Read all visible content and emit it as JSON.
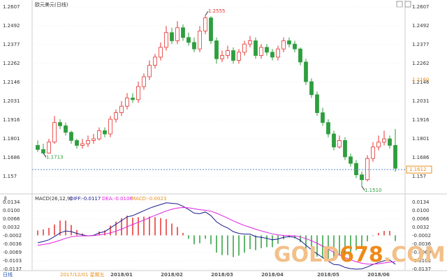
{
  "chart_data": [
    {
      "type": "candlestick",
      "title": "欧元美元(日线)",
      "up_color": "#e8312f",
      "down_color": "#2e9e3e",
      "ylim": [
        1.1476,
        1.2641
      ],
      "yticks": [
        1.157,
        1.1686,
        1.1801,
        1.1916,
        1.2031,
        1.2146,
        1.2262,
        1.2377,
        1.2492,
        1.2607
      ],
      "opens": [
        1.176,
        1.1735,
        1.1713,
        1.178,
        1.19,
        1.188,
        1.184,
        1.179,
        1.176,
        1.177,
        1.179,
        1.18,
        1.185,
        1.183,
        1.192,
        1.196,
        1.2,
        1.205,
        1.204,
        1.212,
        1.218,
        1.225,
        1.23,
        1.236,
        1.245,
        1.24,
        1.248,
        1.242,
        1.239,
        1.235,
        1.246,
        1.254,
        1.24,
        1.229,
        1.231,
        1.234,
        1.228,
        1.233,
        1.238,
        1.24,
        1.231,
        1.236,
        1.233,
        1.23,
        1.235,
        1.24,
        1.238,
        1.235,
        1.227,
        1.215,
        1.207,
        1.196,
        1.19,
        1.183,
        1.175,
        1.179,
        1.169,
        1.165,
        1.158,
        1.155,
        1.168,
        1.175,
        1.178,
        1.18,
        1.176
      ],
      "highs": [
        1.179,
        1.177,
        1.18,
        1.194,
        1.192,
        1.19,
        1.185,
        1.18,
        1.18,
        1.182,
        1.183,
        1.187,
        1.187,
        1.194,
        1.198,
        1.203,
        1.208,
        1.208,
        1.215,
        1.22,
        1.228,
        1.232,
        1.239,
        1.249,
        1.248,
        1.252,
        1.25,
        1.245,
        1.242,
        1.249,
        1.2555,
        1.255,
        1.242,
        1.234,
        1.237,
        1.236,
        1.235,
        1.24,
        1.243,
        1.242,
        1.238,
        1.238,
        1.235,
        1.237,
        1.242,
        1.242,
        1.24,
        1.236,
        1.229,
        1.217,
        1.209,
        1.199,
        1.192,
        1.185,
        1.182,
        1.181,
        1.171,
        1.167,
        1.16,
        1.17,
        1.178,
        1.182,
        1.185,
        1.182,
        1.186
      ],
      "lows": [
        1.172,
        1.1713,
        1.171,
        1.177,
        1.186,
        1.182,
        1.177,
        1.174,
        1.174,
        1.175,
        1.177,
        1.179,
        1.181,
        1.181,
        1.19,
        1.194,
        1.198,
        1.202,
        1.202,
        1.21,
        1.216,
        1.223,
        1.228,
        1.234,
        1.238,
        1.238,
        1.24,
        1.237,
        1.233,
        1.233,
        1.244,
        1.238,
        1.226,
        1.227,
        1.229,
        1.226,
        1.226,
        1.231,
        1.236,
        1.229,
        1.229,
        1.231,
        1.228,
        1.228,
        1.233,
        1.236,
        1.233,
        1.225,
        1.213,
        1.205,
        1.194,
        1.188,
        1.181,
        1.173,
        1.174,
        1.167,
        1.163,
        1.156,
        1.151,
        1.154,
        1.166,
        1.173,
        1.176,
        1.174,
        1.16
      ],
      "closes": [
        1.1735,
        1.1713,
        1.178,
        1.19,
        1.188,
        1.184,
        1.179,
        1.176,
        1.177,
        1.179,
        1.18,
        1.185,
        1.183,
        1.192,
        1.196,
        1.2,
        1.205,
        1.204,
        1.212,
        1.218,
        1.225,
        1.23,
        1.236,
        1.245,
        1.24,
        1.248,
        1.242,
        1.239,
        1.235,
        1.246,
        1.254,
        1.24,
        1.229,
        1.231,
        1.234,
        1.228,
        1.233,
        1.238,
        1.24,
        1.231,
        1.236,
        1.233,
        1.23,
        1.235,
        1.24,
        1.238,
        1.235,
        1.227,
        1.215,
        1.207,
        1.196,
        1.19,
        1.183,
        1.175,
        1.179,
        1.169,
        1.165,
        1.158,
        1.155,
        1.168,
        1.175,
        1.178,
        1.18,
        1.176,
        1.162
      ],
      "annotations": [
        {
          "value": 1.2555,
          "label": "1.2555"
        },
        {
          "value": 1.1713,
          "label": "1.1713"
        },
        {
          "value": 1.151,
          "label": "1.1510"
        }
      ],
      "price_line": {
        "value": 1.1612,
        "label": "1.1612"
      },
      "cursor_label": {
        "value": 1.216,
        "label": "1.2160"
      }
    },
    {
      "type": "macd",
      "title": "MACD(26,12,9)",
      "diff_label": "DIFF:-0.0117",
      "dea_label": "DEA:-0.0106",
      "macd_label": "MACD:-0.0023",
      "ylim": [
        -0.0143,
        0.0154
      ],
      "yticks": [
        {
          "value": -0.0137,
          "label": "-0.0137"
        },
        {
          "value": -0.0103,
          "label": "-0.0103"
        },
        {
          "value": -0.0069,
          "label": "-0.0069"
        },
        {
          "value": -0.0036,
          "label": "-0.0036"
        },
        {
          "value": -0.0002,
          "label": "-0.0002"
        },
        {
          "value": 0.0032,
          "label": "0.0032"
        },
        {
          "value": 0.0066,
          "label": "0.0066"
        },
        {
          "value": 0.01,
          "label": "0.0100"
        },
        {
          "value": 0.0134,
          "label": "0.0134"
        }
      ],
      "series": [
        {
          "name": "DIFF",
          "color": "#1a1a8c",
          "values": [
            -0.003,
            -0.0025,
            -0.0018,
            -0.0005,
            0.001,
            0.0018,
            0.0015,
            0.0008,
            0.0002,
            -0.0002,
            0.0,
            0.001,
            0.0015,
            0.003,
            0.0045,
            0.006,
            0.0075,
            0.008,
            0.009,
            0.01,
            0.011,
            0.0118,
            0.0125,
            0.0132,
            0.013,
            0.0128,
            0.0118,
            0.0105,
            0.009,
            0.0088,
            0.0095,
            0.008,
            0.0055,
            0.004,
            0.003,
            0.0015,
            0.0008,
            0.0005,
            0.0005,
            -0.0005,
            -0.0008,
            -0.0012,
            -0.0018,
            -0.0015,
            -0.0008,
            -0.0005,
            -0.0008,
            -0.002,
            -0.004,
            -0.0058,
            -0.0075,
            -0.009,
            -0.0105,
            -0.0118,
            -0.012,
            -0.013,
            -0.0135,
            -0.0137,
            -0.0136,
            -0.0128,
            -0.0118,
            -0.011,
            -0.0103,
            -0.01,
            -0.0117
          ]
        },
        {
          "name": "DEA",
          "color": "#e020e0",
          "values": [
            -0.004,
            -0.0037,
            -0.0033,
            -0.0027,
            -0.002,
            -0.0012,
            -0.0006,
            -0.0003,
            -0.0002,
            -0.0002,
            -0.0001,
            0.0002,
            0.0005,
            0.001,
            0.0017,
            0.0025,
            0.0035,
            0.0044,
            0.0053,
            0.0062,
            0.0072,
            0.0081,
            0.009,
            0.0099,
            0.0106,
            0.0111,
            0.0113,
            0.0112,
            0.0108,
            0.0104,
            0.0102,
            0.0098,
            0.009,
            0.008,
            0.007,
            0.0059,
            0.0049,
            0.004,
            0.0033,
            0.0025,
            0.0018,
            0.0012,
            0.0006,
            0.0002,
            0.0,
            -0.0001,
            -0.0002,
            -0.0006,
            -0.0013,
            -0.0022,
            -0.0032,
            -0.0044,
            -0.0056,
            -0.0069,
            -0.008,
            -0.009,
            -0.0099,
            -0.0107,
            -0.0113,
            -0.0116,
            -0.0117,
            -0.0115,
            -0.0112,
            -0.0109,
            -0.0106
          ]
        },
        {
          "name": "MACD",
          "color": "#e8312f",
          "values": [
            0.002,
            0.0024,
            0.003,
            0.0044,
            0.006,
            0.006,
            0.0042,
            0.0022,
            0.0008,
            0.0,
            0.0002,
            0.0016,
            0.002,
            0.004,
            0.0056,
            0.007,
            0.008,
            0.0072,
            0.0074,
            0.0076,
            0.0076,
            0.0074,
            0.007,
            0.0066,
            0.0048,
            0.0034,
            0.001,
            -0.0014,
            -0.0036,
            -0.0032,
            -0.0014,
            -0.0036,
            -0.007,
            -0.008,
            -0.008,
            -0.0088,
            -0.0082,
            -0.007,
            -0.0056,
            -0.006,
            -0.0052,
            -0.0048,
            -0.0048,
            -0.0034,
            -0.0016,
            -0.0008,
            -0.0012,
            -0.0028,
            -0.0054,
            -0.0072,
            -0.0086,
            -0.0092,
            -0.0098,
            -0.0098,
            -0.008,
            -0.008,
            -0.0072,
            -0.006,
            -0.0046,
            -0.0024,
            -0.0002,
            0.001,
            0.0018,
            0.0018,
            -0.0023
          ]
        }
      ],
      "neg_color": "#2e9e3e",
      "period_label": "日线",
      "date_label": "2017/12/01 星期五",
      "x_labels": [
        "2018/01",
        "2018/02",
        "2018/03",
        "2018/04",
        "2018/05",
        "2018/06"
      ]
    }
  ],
  "watermark": [
    "GOLD",
    "678",
    ".COM"
  ]
}
